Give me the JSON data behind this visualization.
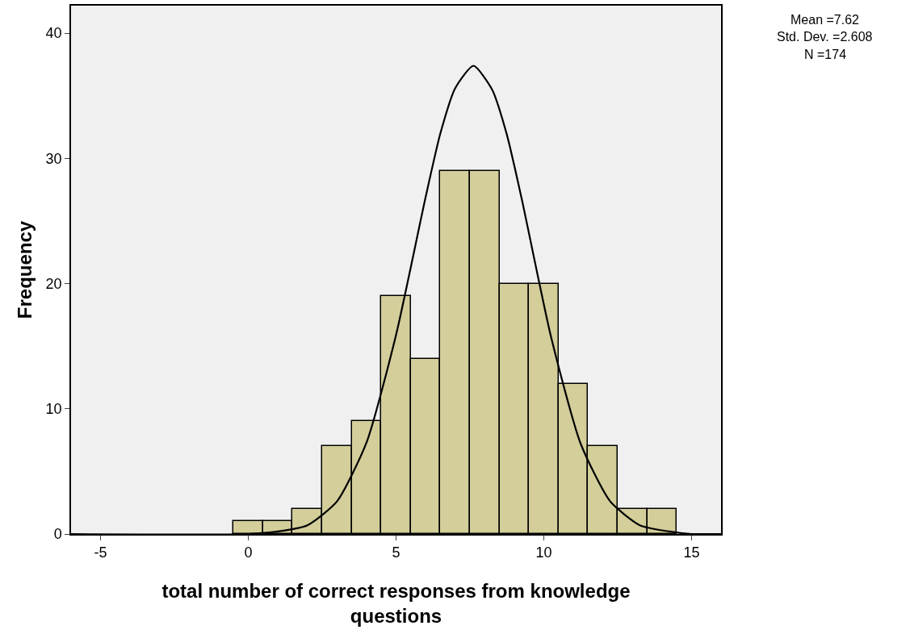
{
  "chart_data": {
    "type": "histogram",
    "xlabel": "total number of correct responses from knowledge questions",
    "ylabel": "Frequency",
    "annotations": [
      "Mean =7.62",
      "Std. Dev. =2.608",
      "N =174"
    ],
    "series": [
      {
        "color": "#d3ce9a",
        "bins": [
          -0.5,
          0.5,
          1.5,
          2.5,
          3.5,
          4.5,
          5.5,
          6.5,
          7.5,
          8.5,
          9.5,
          10.5,
          11.5,
          12.5,
          13.5,
          14.5
        ],
        "values": [
          1,
          1,
          2,
          7,
          9,
          19,
          14,
          29,
          29,
          20,
          20,
          12,
          7,
          2,
          2
        ]
      },
      {
        "type": "line",
        "color": "#000000",
        "x": [
          -6,
          0,
          1,
          2,
          3,
          4,
          5,
          6,
          6.5,
          7,
          7.62,
          8.25,
          8.75,
          9.25,
          10.25,
          11.25,
          12.25,
          13.25,
          14.25,
          15,
          16
        ],
        "values": [
          0,
          0,
          0.2,
          0.7,
          2.6,
          7.3,
          15.9,
          26.9,
          32.0,
          35.6,
          37.4,
          35.5,
          31.9,
          26.8,
          15.7,
          7.2,
          2.6,
          0.7,
          0.2,
          0,
          0
        ]
      }
    ],
    "xlim": [
      -6,
      16
    ],
    "xticks": [
      -5,
      0,
      5,
      10,
      15
    ],
    "ylim": [
      0,
      42.2
    ],
    "yticks": [
      0,
      10,
      20,
      30,
      40
    ],
    "grid": false
  }
}
